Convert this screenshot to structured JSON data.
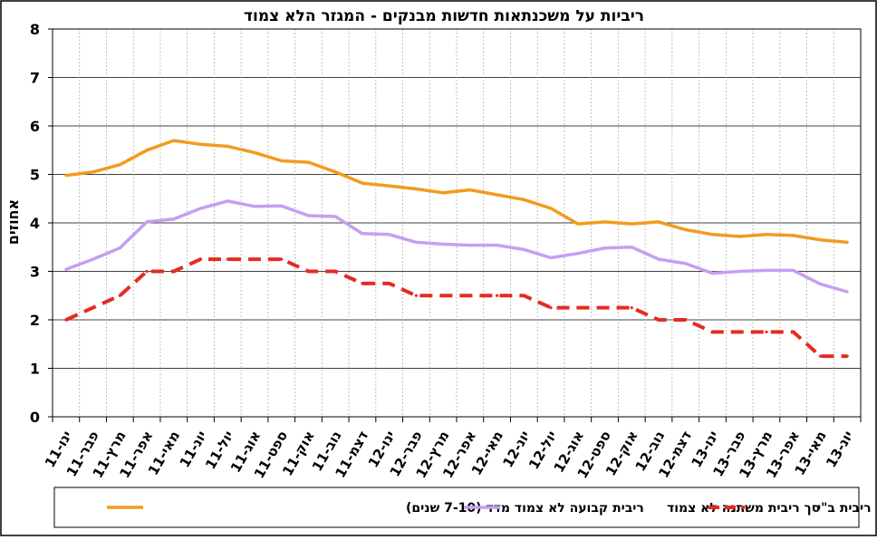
{
  "chart_data": {
    "type": "line",
    "title": "ריביות על משכנתאות חדשות מבנקים - המגזר הלא צמוד",
    "xlabel": "",
    "ylabel": "אחוזים",
    "ylim": [
      0,
      8
    ],
    "yticks": [
      "0",
      "1",
      "2",
      "3",
      "4",
      "5",
      "6",
      "7",
      "8"
    ],
    "grid": true,
    "legend_position": "bottom",
    "categories": [
      "ינו-11",
      "פבר-11",
      "מרץ-11",
      "אפר-11",
      "מאי-11",
      "יונ-11",
      "יול-11",
      "אוג-11",
      "ספט-11",
      "אוק-11",
      "נוב-11",
      "דצמ-11",
      "ינו-12",
      "פבר-12",
      "מרץ-12",
      "אפר-12",
      "מאי-12",
      "יונ-12",
      "יול-12",
      "אוג-12",
      "ספט-12",
      "אוק-12",
      "נוב-12",
      "דצמ-12",
      "ינו-13",
      "פבר-13",
      "מרץ-13",
      "אפר-13",
      "מאי-13",
      "יונ-13"
    ],
    "series": [
      {
        "name": "ריבית קבועה לא צמוד מדד (7-10 שנים)",
        "color": "#f29b1d",
        "style": "solid",
        "values": [
          4.98,
          5.05,
          5.2,
          5.5,
          5.7,
          5.62,
          5.58,
          5.45,
          5.28,
          5.25,
          5.05,
          4.82,
          4.76,
          4.7,
          4.62,
          4.68,
          4.58,
          4.48,
          4.3,
          3.98,
          4.02,
          3.98,
          4.02,
          3.86,
          3.76,
          3.72,
          3.76,
          3.74,
          3.65,
          3.6
        ]
      },
      {
        "name": "סך ריבית משתנה לא צמוד",
        "color": "#c79ef0",
        "style": "solid",
        "values": [
          3.04,
          3.25,
          3.48,
          4.02,
          4.08,
          4.3,
          4.45,
          4.34,
          4.35,
          4.15,
          4.13,
          3.78,
          3.76,
          3.6,
          3.56,
          3.54,
          3.54,
          3.45,
          3.28,
          3.37,
          3.48,
          3.5,
          3.25,
          3.16,
          2.96,
          3.0,
          3.02,
          3.02,
          2.74,
          2.58
        ]
      },
      {
        "name": "ריבית ב\"י",
        "color": "#e32c24",
        "style": "dashed",
        "values": [
          2.0,
          2.25,
          2.5,
          3.0,
          3.0,
          3.25,
          3.25,
          3.25,
          3.25,
          3.0,
          3.0,
          2.75,
          2.75,
          2.5,
          2.5,
          2.5,
          2.5,
          2.5,
          2.25,
          2.25,
          2.25,
          2.25,
          2.0,
          2.0,
          1.75,
          1.75,
          1.75,
          1.75,
          1.25,
          1.25
        ]
      }
    ]
  }
}
